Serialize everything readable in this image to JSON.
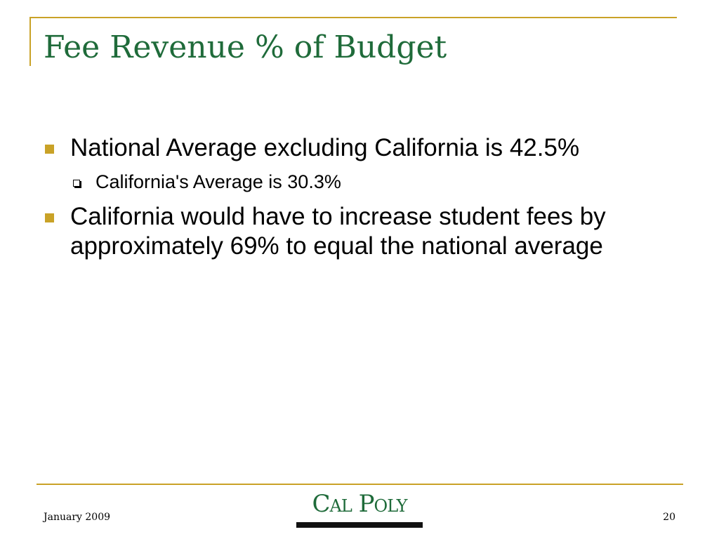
{
  "slide": {
    "title": "Fee Revenue % of Budget",
    "bullets": [
      {
        "level": 1,
        "text": "National Average excluding California is 42.5%"
      },
      {
        "level": 2,
        "text": "California's Average is 30.3%"
      },
      {
        "level": 1,
        "text": "California would have to increase student fees by approximately 69% to equal the national average"
      }
    ]
  },
  "footer": {
    "date": "January 2009",
    "page_number": "20",
    "logo_text": "Cal Poly"
  },
  "colors": {
    "title": "#1f6b3a",
    "accent_gold": "#c9a227",
    "logo_green": "#1f6b3a"
  },
  "icons": {
    "level1_bullet": "gold-square-bullet-icon",
    "level2_bullet": "hollow-square-bullet-icon"
  }
}
